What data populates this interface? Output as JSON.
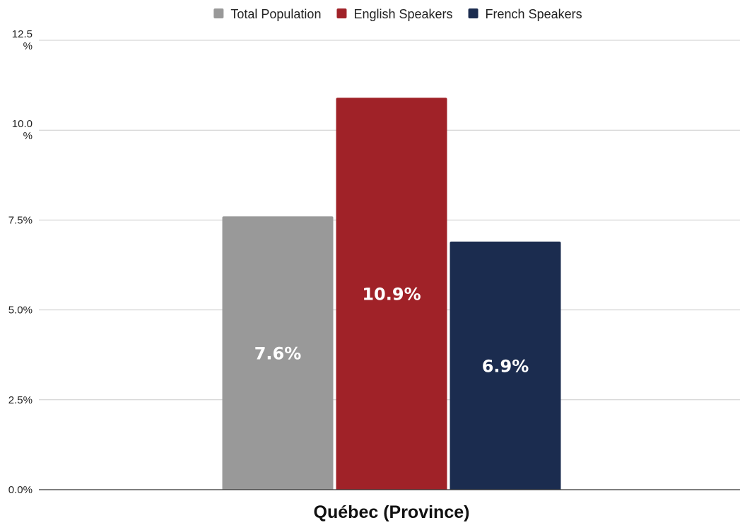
{
  "chart_data": {
    "type": "bar",
    "title": "",
    "xlabel": "",
    "ylabel": "",
    "categories": [
      "Québec (Province)"
    ],
    "series": [
      {
        "name": "Total Population",
        "values": [
          7.6
        ],
        "labels": [
          "7.6%"
        ],
        "color": "#999999"
      },
      {
        "name": "English Speakers",
        "values": [
          10.9
        ],
        "labels": [
          "10.9%"
        ],
        "color": "#a02228"
      },
      {
        "name": "French Speakers",
        "values": [
          6.9
        ],
        "labels": [
          "6.9%"
        ],
        "color": "#1b2c4f"
      }
    ],
    "ylim": [
      0,
      12.5
    ],
    "y_ticks": [
      {
        "value": 0,
        "label": "0.0%"
      },
      {
        "value": 2.5,
        "label": "2.5%"
      },
      {
        "value": 5,
        "label": "5.0%"
      },
      {
        "value": 7.5,
        "label": "7.5%"
      },
      {
        "value": 10,
        "label": "10.0 %"
      },
      {
        "value": 12.5,
        "label": "12.5 %"
      }
    ],
    "grid": true,
    "legend": "top-center"
  }
}
